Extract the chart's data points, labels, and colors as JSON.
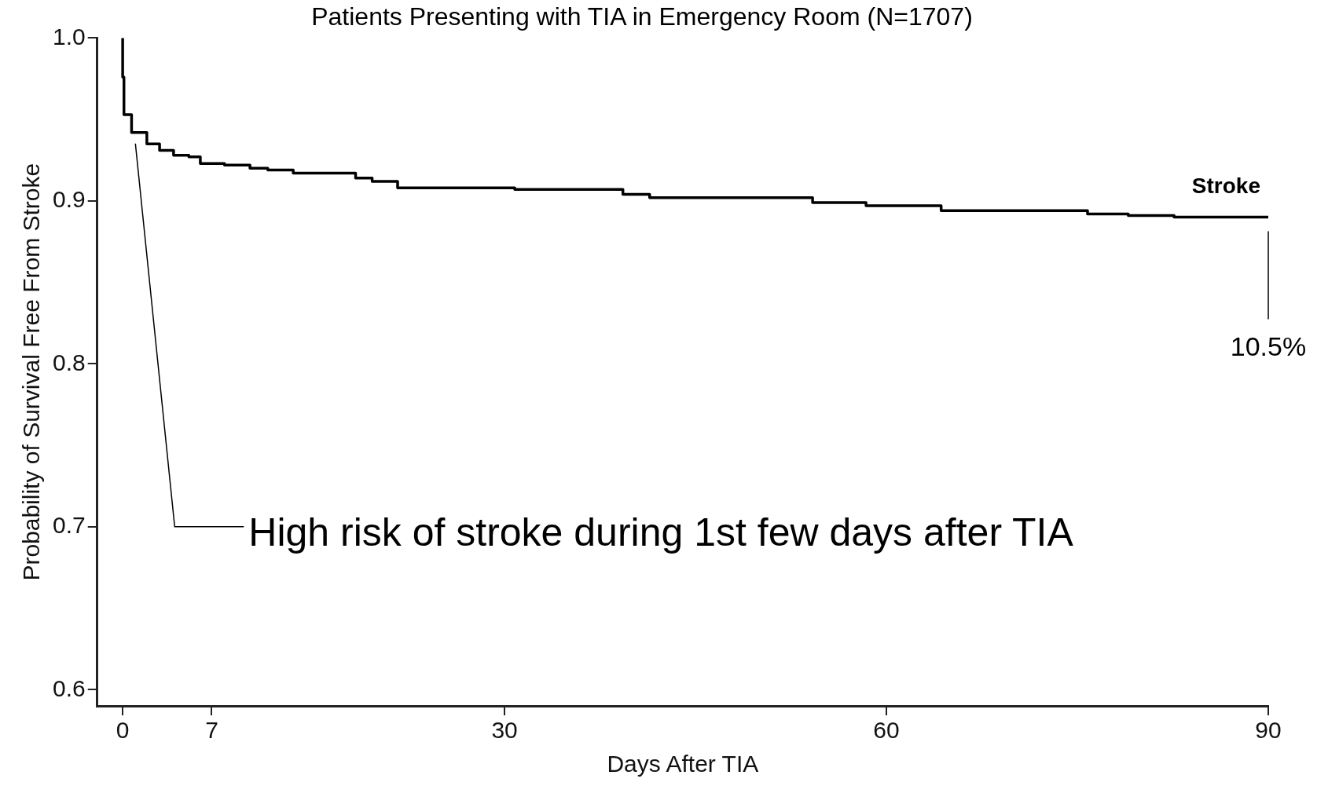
{
  "chart_data": {
    "type": "step",
    "title": "Patients Presenting with TIA in Emergency Room (N=1707)",
    "xlabel": "Days After TIA",
    "ylabel": "Probability of Survival Free From Stroke",
    "series": [
      {
        "name": "Stroke",
        "color": "#000000",
        "x": [
          0,
          0.1,
          0.7,
          1.9,
          2.9,
          4.0,
          5.2,
          6.1,
          8,
          10,
          11.4,
          13.4,
          18.3,
          19.6,
          21.6,
          30.8,
          39.3,
          41.4,
          54.2,
          58.4,
          64.3,
          75.8,
          79,
          82.6,
          89,
          90
        ],
        "values": [
          1.0,
          0.976,
          0.953,
          0.942,
          0.935,
          0.931,
          0.928,
          0.927,
          0.923,
          0.922,
          0.92,
          0.919,
          0.917,
          0.914,
          0.912,
          0.908,
          0.907,
          0.904,
          0.902,
          0.899,
          0.897,
          0.894,
          0.892,
          0.891,
          0.89,
          0.89
        ]
      }
    ],
    "xlim": [
      -2,
      90
    ],
    "xticks": [
      0,
      7,
      30,
      60,
      90
    ],
    "ylim": [
      0.59,
      1.0
    ],
    "yticks": [
      {
        "value": 0.6,
        "label": "0.6"
      },
      {
        "value": 0.7,
        "label": "0.7"
      },
      {
        "value": 0.8,
        "label": "0.8"
      },
      {
        "value": 0.9,
        "label": "0.9"
      },
      {
        "value": 1.0,
        "label": "1.0"
      }
    ],
    "grid": false,
    "legend": false,
    "line_style": "solid",
    "marker": "none",
    "annotations": [
      "10.5%",
      "High risk of stroke during 1st few days after TIA"
    ]
  }
}
